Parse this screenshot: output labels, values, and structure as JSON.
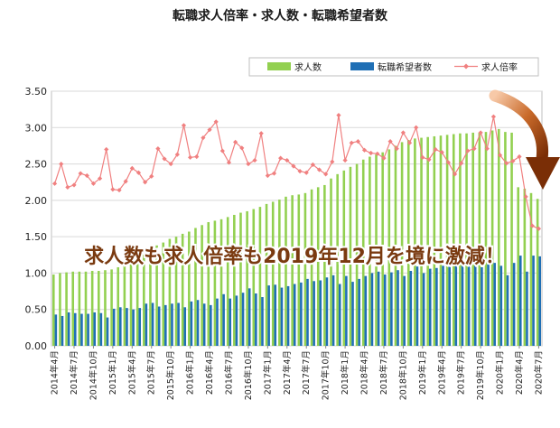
{
  "chart_data": {
    "type": "bar+line",
    "title": "転職求人倍率・求人数・転職希望者数",
    "ylim": [
      0,
      3.5
    ],
    "y_ticks": [
      "0.00",
      "0.50",
      "1.00",
      "1.50",
      "2.00",
      "2.50",
      "3.00",
      "3.50"
    ],
    "grid": true,
    "legend_position": "top-right",
    "x": [
      "2014年4月",
      "2014年5月",
      "2014年6月",
      "2014年7月",
      "2014年8月",
      "2014年9月",
      "2014年10月",
      "2014年11月",
      "2014年12月",
      "2015年1月",
      "2015年2月",
      "2015年3月",
      "2015年4月",
      "2015年5月",
      "2015年6月",
      "2015年7月",
      "2015年8月",
      "2015年9月",
      "2015年10月",
      "2015年11月",
      "2015年12月",
      "2016年1月",
      "2016年2月",
      "2016年3月",
      "2016年4月",
      "2016年5月",
      "2016年6月",
      "2016年7月",
      "2016年8月",
      "2016年9月",
      "2016年10月",
      "2016年11月",
      "2016年12月",
      "2017年1月",
      "2017年2月",
      "2017年3月",
      "2017年4月",
      "2017年5月",
      "2017年6月",
      "2017年7月",
      "2017年8月",
      "2017年9月",
      "2017年10月",
      "2017年11月",
      "2017年12月",
      "2018年1月",
      "2018年2月",
      "2018年3月",
      "2018年4月",
      "2018年5月",
      "2018年6月",
      "2018年7月",
      "2018年8月",
      "2018年9月",
      "2018年10月",
      "2018年11月",
      "2018年12月",
      "2019年1月",
      "2019年2月",
      "2019年3月",
      "2019年4月",
      "2019年5月",
      "2019年6月",
      "2019年7月",
      "2019年8月",
      "2019年9月",
      "2019年10月",
      "2019年11月",
      "2019年12月",
      "2020年1月",
      "2020年2月",
      "2020年3月",
      "2020年4月",
      "2020年5月",
      "2020年6月",
      "2020年7月"
    ],
    "x_tick_labels": [
      "2014年4月",
      "2014年7月",
      "2014年10月",
      "2015年1月",
      "2015年4月",
      "2015年7月",
      "2015年10月",
      "2016年1月",
      "2016年4月",
      "2016年7月",
      "2016年10月",
      "2017年1月",
      "2017年4月",
      "2017年7月",
      "2017年10月",
      "2018年1月",
      "2018年4月",
      "2018年7月",
      "2018年10月",
      "2019年1月",
      "2019年4月",
      "2019年7月",
      "2019年10月",
      "2020年1月",
      "2020年4月",
      "2020年7月"
    ],
    "series": [
      {
        "name": "求人数",
        "kind": "bar",
        "color": "#92d050",
        "values": [
          0.98,
          1.0,
          1.01,
          1.02,
          1.02,
          1.02,
          1.03,
          1.03,
          1.04,
          1.05,
          1.08,
          1.1,
          1.15,
          1.2,
          1.25,
          1.32,
          1.38,
          1.42,
          1.47,
          1.5,
          1.54,
          1.57,
          1.62,
          1.66,
          1.7,
          1.72,
          1.74,
          1.77,
          1.8,
          1.83,
          1.85,
          1.88,
          1.91,
          1.95,
          1.98,
          2.01,
          2.05,
          2.07,
          2.08,
          2.1,
          2.15,
          2.18,
          2.21,
          2.3,
          2.36,
          2.41,
          2.46,
          2.5,
          2.56,
          2.6,
          2.63,
          2.66,
          2.7,
          2.75,
          2.8,
          2.83,
          2.85,
          2.86,
          2.87,
          2.88,
          2.89,
          2.9,
          2.91,
          2.92,
          2.92,
          2.93,
          2.93,
          2.94,
          2.96,
          2.98,
          2.94,
          2.93,
          2.18,
          2.16,
          2.1,
          2.02
        ]
      },
      {
        "name": "転職希望者数",
        "kind": "bar",
        "color": "#1f6fb5",
        "values": [
          0.43,
          0.41,
          0.46,
          0.45,
          0.44,
          0.44,
          0.46,
          0.45,
          0.39,
          0.51,
          0.53,
          0.52,
          0.5,
          0.52,
          0.58,
          0.59,
          0.54,
          0.56,
          0.58,
          0.59,
          0.53,
          0.61,
          0.63,
          0.58,
          0.56,
          0.65,
          0.71,
          0.65,
          0.69,
          0.73,
          0.79,
          0.72,
          0.67,
          0.83,
          0.84,
          0.8,
          0.82,
          0.85,
          0.87,
          0.92,
          0.89,
          0.9,
          0.94,
          0.97,
          0.85,
          0.96,
          0.88,
          0.92,
          0.96,
          1.0,
          1.02,
          0.98,
          1.01,
          1.04,
          0.96,
          1.03,
          1.09,
          1.0,
          1.06,
          1.07,
          1.1,
          1.09,
          1.12,
          1.14,
          1.1,
          1.13,
          1.08,
          1.12,
          1.14,
          1.1,
          0.97,
          1.14,
          1.24,
          1.02,
          1.24,
          1.23
        ]
      },
      {
        "name": "求人倍率",
        "kind": "line",
        "color": "#f08080",
        "values": [
          2.23,
          2.5,
          2.18,
          2.21,
          2.37,
          2.34,
          2.23,
          2.3,
          2.7,
          2.15,
          2.14,
          2.26,
          2.44,
          2.38,
          2.25,
          2.33,
          2.71,
          2.57,
          2.5,
          2.63,
          3.03,
          2.59,
          2.6,
          2.86,
          2.97,
          3.08,
          2.68,
          2.52,
          2.8,
          2.72,
          2.5,
          2.55,
          2.92,
          2.34,
          2.37,
          2.58,
          2.55,
          2.47,
          2.4,
          2.38,
          2.49,
          2.42,
          2.36,
          2.53,
          3.17,
          2.55,
          2.79,
          2.81,
          2.69,
          2.65,
          2.64,
          2.58,
          2.81,
          2.71,
          2.93,
          2.79,
          3.0,
          2.59,
          2.56,
          2.7,
          2.66,
          2.52,
          2.36,
          2.51,
          2.68,
          2.71,
          2.93,
          2.71,
          3.15,
          2.62,
          2.51,
          2.54,
          2.6,
          2.05,
          1.65,
          1.61
        ]
      }
    ],
    "annotation": "求人数も求人倍率も2019年12月を境に激減！"
  }
}
